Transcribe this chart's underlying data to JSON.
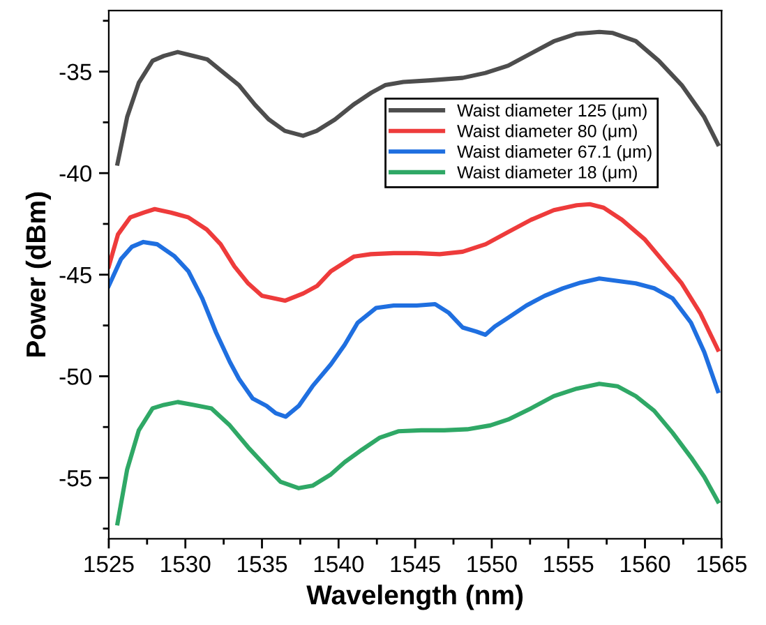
{
  "chart_data": {
    "type": "line",
    "xlabel": "Wavelength (nm)",
    "ylabel": "Power (dBm)",
    "xlim": [
      1525,
      1565
    ],
    "xticks": [
      1525,
      1530,
      1535,
      1540,
      1545,
      1550,
      1555,
      1560,
      1565
    ],
    "ylim": [
      -58,
      -32
    ],
    "yticks": [
      -35,
      -40,
      -45,
      -50,
      -55
    ],
    "grid": false,
    "legend": "top right",
    "marker": "none",
    "line_style": "solid",
    "series": [
      {
        "name": "Waist diameter 125 (μm)",
        "color": "#4d4d4d",
        "x": [
          1525.57,
          1526.2,
          1526.96,
          1527.86,
          1528.6,
          1529.5,
          1530.54,
          1531.43,
          1532.32,
          1533.5,
          1534.55,
          1535.45,
          1536.49,
          1537.68,
          1538.57,
          1539.76,
          1540.95,
          1542.14,
          1543.04,
          1544.23,
          1546.0,
          1548.1,
          1549.58,
          1551.07,
          1552.56,
          1554.05,
          1555.54,
          1557.02,
          1557.9,
          1559.4,
          1560.9,
          1562.4,
          1563.87,
          1564.76
        ],
        "values": [
          -39.53,
          -37.24,
          -35.55,
          -34.47,
          -34.23,
          -34.04,
          -34.23,
          -34.4,
          -34.95,
          -35.67,
          -36.64,
          -37.36,
          -37.92,
          -38.16,
          -37.92,
          -37.36,
          -36.64,
          -36.04,
          -35.67,
          -35.51,
          -35.43,
          -35.31,
          -35.07,
          -34.71,
          -34.11,
          -33.51,
          -33.14,
          -33.05,
          -33.1,
          -33.5,
          -34.47,
          -35.67,
          -37.24,
          -38.57
        ]
      },
      {
        "name": "Waist diameter 80 (μm)",
        "color": "#ee3b3b",
        "x": [
          1525.0,
          1525.6,
          1526.4,
          1527.3,
          1528.0,
          1529.05,
          1530.2,
          1531.4,
          1532.3,
          1533.2,
          1534.1,
          1535.0,
          1536.5,
          1537.7,
          1538.6,
          1539.5,
          1541.0,
          1542.1,
          1543.6,
          1545.1,
          1546.6,
          1548.1,
          1549.6,
          1551.07,
          1552.56,
          1554.05,
          1555.54,
          1556.4,
          1557.3,
          1558.5,
          1560.0,
          1561.2,
          1562.4,
          1563.6,
          1564.76
        ],
        "values": [
          -44.59,
          -43.02,
          -42.18,
          -41.94,
          -41.77,
          -41.94,
          -42.18,
          -42.78,
          -43.5,
          -44.59,
          -45.43,
          -46.04,
          -46.28,
          -45.92,
          -45.55,
          -44.83,
          -44.11,
          -43.99,
          -43.94,
          -43.94,
          -43.99,
          -43.87,
          -43.5,
          -42.9,
          -42.3,
          -41.82,
          -41.58,
          -41.53,
          -41.7,
          -42.3,
          -43.27,
          -44.35,
          -45.43,
          -46.88,
          -48.69
        ]
      },
      {
        "name": "Waist diameter 67.1 (μm)",
        "color": "#1f6fe0",
        "x": [
          1525.0,
          1525.8,
          1526.5,
          1527.26,
          1528.15,
          1529.3,
          1530.2,
          1531.1,
          1532.0,
          1532.9,
          1533.5,
          1534.4,
          1535.3,
          1535.9,
          1536.55,
          1537.4,
          1538.3,
          1539.5,
          1540.4,
          1541.25,
          1542.44,
          1543.6,
          1545.1,
          1546.3,
          1547.2,
          1548.1,
          1549.0,
          1549.58,
          1550.2,
          1551.07,
          1552.26,
          1553.45,
          1554.64,
          1555.8,
          1557.02,
          1558.2,
          1559.4,
          1560.6,
          1561.8,
          1563.0,
          1563.87,
          1564.76
        ],
        "values": [
          -45.55,
          -44.23,
          -43.63,
          -43.39,
          -43.5,
          -44.1,
          -44.83,
          -46.16,
          -47.84,
          -49.29,
          -50.13,
          -51.1,
          -51.46,
          -51.82,
          -51.99,
          -51.46,
          -50.49,
          -49.41,
          -48.45,
          -47.36,
          -46.64,
          -46.52,
          -46.52,
          -46.45,
          -46.88,
          -47.6,
          -47.8,
          -47.96,
          -47.55,
          -47.12,
          -46.52,
          -46.04,
          -45.67,
          -45.39,
          -45.19,
          -45.31,
          -45.43,
          -45.67,
          -46.16,
          -47.36,
          -48.81,
          -50.73
        ]
      },
      {
        "name": "Waist diameter 18 (μm)",
        "color": "#2fa866",
        "x": [
          1525.57,
          1526.2,
          1526.96,
          1527.86,
          1528.6,
          1529.5,
          1530.54,
          1531.7,
          1532.9,
          1534.1,
          1535.3,
          1536.2,
          1537.4,
          1538.3,
          1539.5,
          1540.4,
          1541.5,
          1542.7,
          1543.9,
          1545.4,
          1546.9,
          1548.4,
          1549.9,
          1551.07,
          1552.56,
          1554.05,
          1555.54,
          1557.02,
          1558.2,
          1559.4,
          1560.6,
          1561.8,
          1563.0,
          1563.87,
          1564.76
        ],
        "values": [
          -57.24,
          -54.59,
          -52.66,
          -51.58,
          -51.41,
          -51.27,
          -51.41,
          -51.58,
          -52.42,
          -53.5,
          -54.47,
          -55.19,
          -55.51,
          -55.39,
          -54.83,
          -54.23,
          -53.63,
          -53.02,
          -52.71,
          -52.66,
          -52.66,
          -52.61,
          -52.42,
          -52.13,
          -51.58,
          -50.98,
          -50.61,
          -50.37,
          -50.49,
          -50.98,
          -51.7,
          -52.78,
          -53.99,
          -54.95,
          -56.16
        ]
      }
    ]
  }
}
